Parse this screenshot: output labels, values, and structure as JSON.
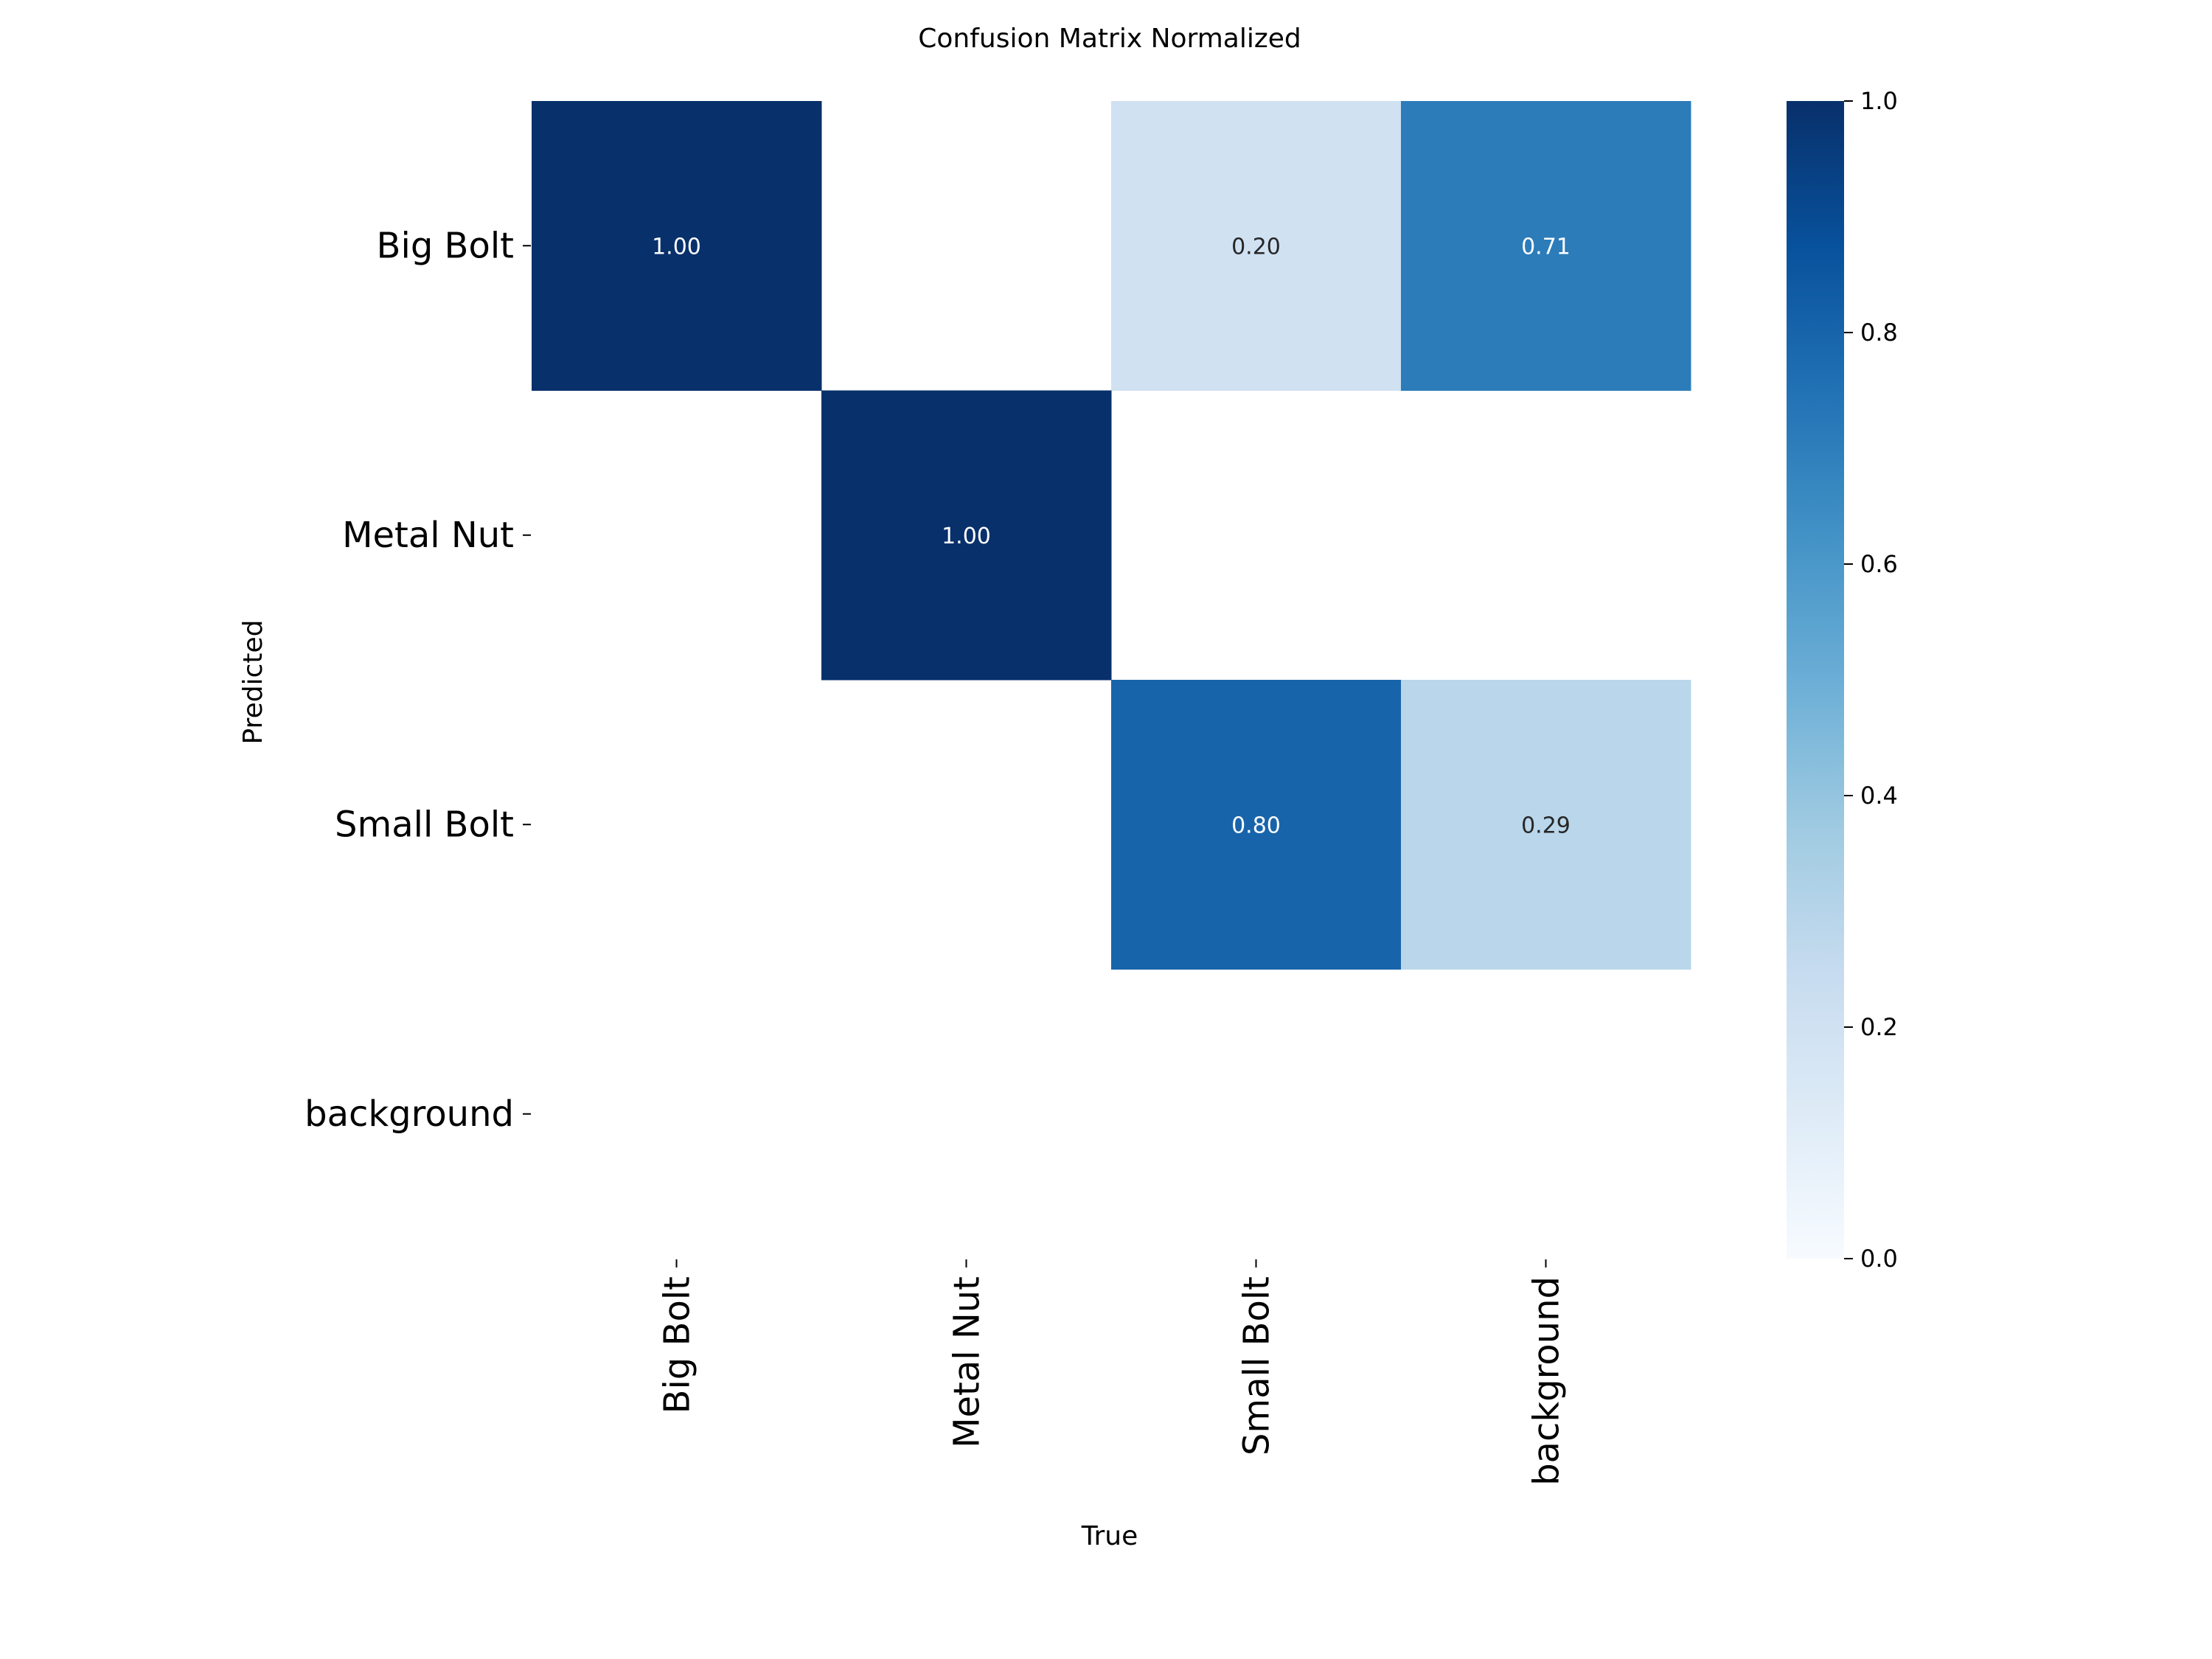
{
  "chart_data": {
    "type": "heatmap",
    "title": "Confusion Matrix Normalized",
    "xlabel": "True",
    "ylabel": "Predicted",
    "x_categories": [
      "Big Bolt",
      "Metal Nut",
      "Small Bolt",
      "background"
    ],
    "y_categories": [
      "Big Bolt",
      "Metal Nut",
      "Small Bolt",
      "background"
    ],
    "values": [
      [
        1.0,
        null,
        0.2,
        0.71
      ],
      [
        null,
        1.0,
        null,
        null
      ],
      [
        null,
        null,
        0.8,
        0.29
      ],
      [
        null,
        null,
        null,
        null
      ]
    ],
    "value_format": "0.00",
    "colormap": "Blues",
    "colorbar": {
      "range": [
        0.0,
        1.0
      ],
      "ticks": [
        "0.0",
        "0.2",
        "0.4",
        "0.6",
        "0.8",
        "1.0"
      ]
    },
    "grid": false
  }
}
